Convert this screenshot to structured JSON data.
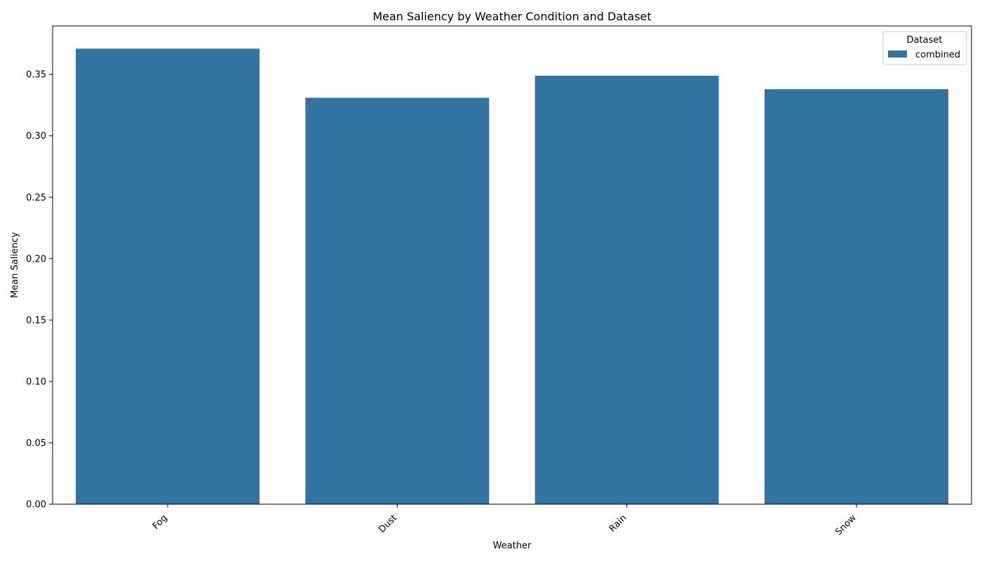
{
  "chart_data": {
    "type": "bar",
    "title": "Mean Saliency by Weather Condition and Dataset",
    "xlabel": "Weather",
    "ylabel": "Mean Saliency",
    "categories": [
      "Fog",
      "Dust",
      "Rain",
      "Snow"
    ],
    "series": [
      {
        "name": "combined",
        "values": [
          0.371,
          0.331,
          0.349,
          0.338
        ],
        "color": "#3274a1"
      }
    ],
    "ylim": [
      0,
      0.3895
    ],
    "yticks": [
      0.0,
      0.05,
      0.1,
      0.15,
      0.2,
      0.25,
      0.3,
      0.35
    ],
    "ytick_labels": [
      "0.00",
      "0.05",
      "0.10",
      "0.15",
      "0.20",
      "0.25",
      "0.30",
      "0.35"
    ],
    "legend": {
      "title": "Dataset",
      "placement": "top-right"
    },
    "grid": false
  }
}
